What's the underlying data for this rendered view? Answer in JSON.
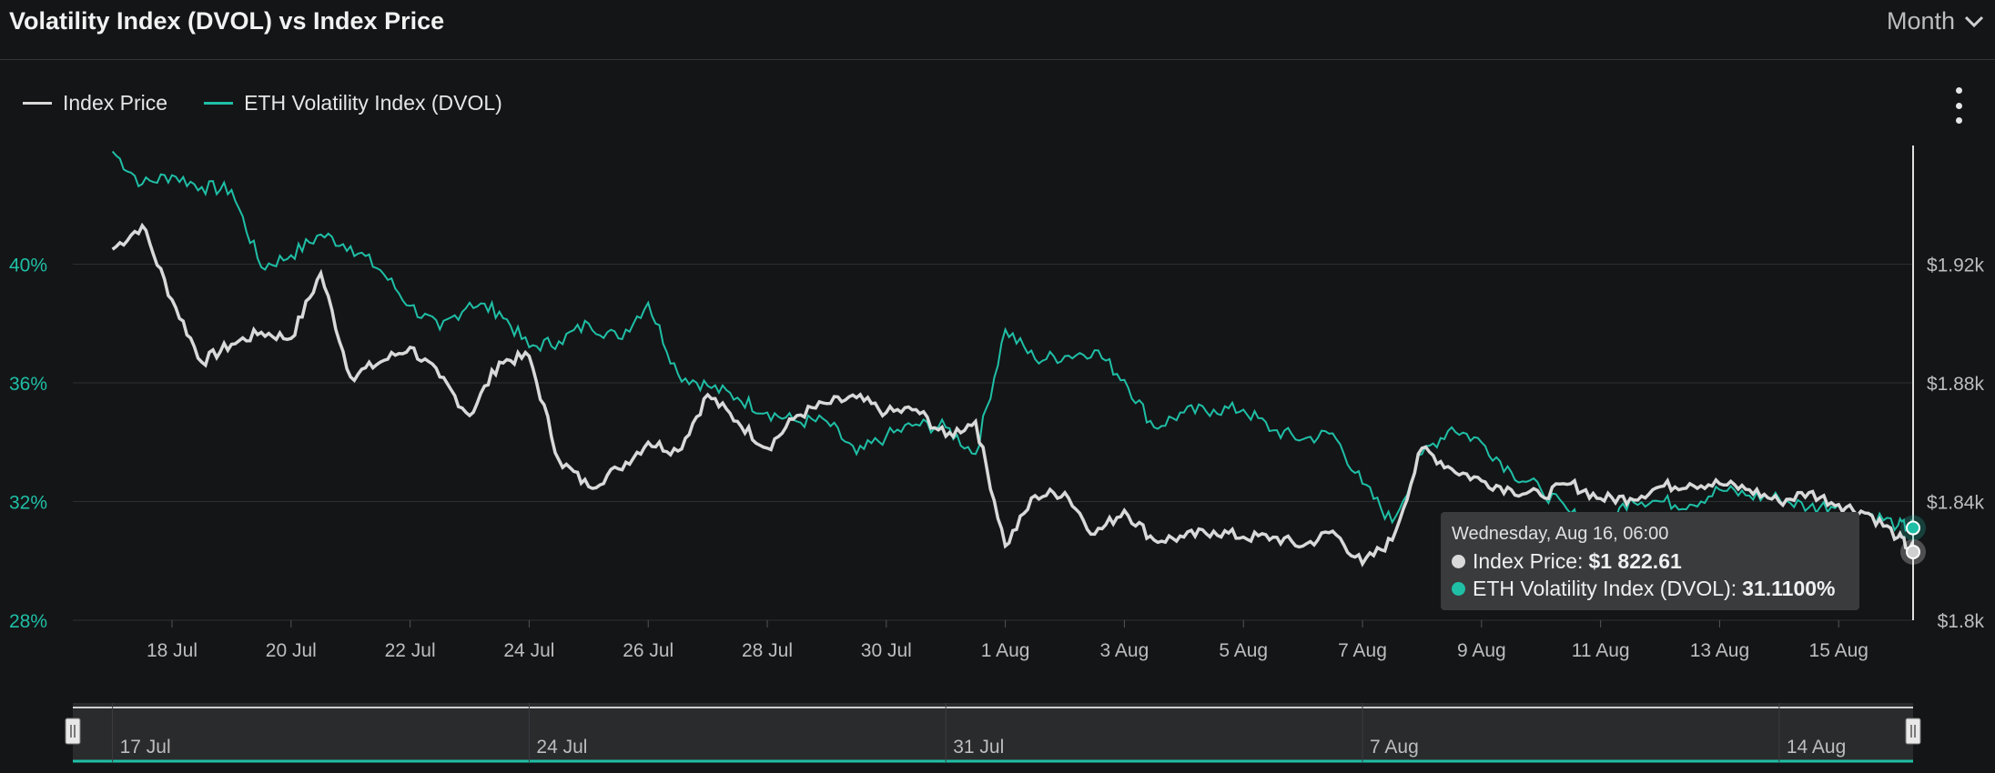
{
  "header": {
    "title": "Volatility Index (DVOL) vs Index Price",
    "period_label": "Month"
  },
  "colors": {
    "index_price": "#d9d9d9",
    "dvol": "#1fbfa6",
    "background": "#141517",
    "grid": "#2c2e31"
  },
  "icons": {
    "period_dropdown": "chevron-down-icon",
    "menu": "kebab-menu-icon",
    "navigator_handle": "grip-handle-icon"
  },
  "tooltip": {
    "date": "Wednesday, Aug 16, 06:00",
    "index_label": "Index Price:",
    "index_value": "$1 822.61",
    "dvol_label": "ETH Volatility Index (DVOL):",
    "dvol_value": "31.1100%"
  },
  "navigator": {
    "labels": [
      "17 Jul",
      "24 Jul",
      "31 Jul",
      "7 Aug",
      "14 Aug"
    ]
  },
  "chart_data": {
    "type": "line",
    "legend_position": "top-left",
    "grid": true,
    "x_tick_labels": [
      "18 Jul",
      "20 Jul",
      "22 Jul",
      "24 Jul",
      "26 Jul",
      "28 Jul",
      "30 Jul",
      "1 Aug",
      "3 Aug",
      "5 Aug",
      "7 Aug",
      "9 Aug",
      "11 Aug",
      "13 Aug",
      "15 Aug"
    ],
    "left_axis": {
      "ticks": [
        "40%",
        "36%",
        "32%",
        "28%"
      ],
      "values": [
        40,
        36,
        32,
        28
      ],
      "range": [
        28,
        44
      ]
    },
    "right_axis": {
      "ticks": [
        "$1.92k",
        "$1.88k",
        "$1.84k",
        "$1.8k"
      ],
      "values": [
        1920,
        1880,
        1840,
        1800
      ],
      "range": [
        1800,
        1960
      ]
    },
    "series": [
      {
        "name": "Index Price",
        "axis": "right",
        "x": [
          "2023-07-17",
          "2023-07-17 12:00",
          "2023-07-18",
          "2023-07-18 12:00",
          "2023-07-19",
          "2023-07-19 12:00",
          "2023-07-20",
          "2023-07-20 12:00",
          "2023-07-21",
          "2023-07-21 12:00",
          "2023-07-22",
          "2023-07-22 12:00",
          "2023-07-23",
          "2023-07-23 12:00",
          "2023-07-24",
          "2023-07-24 12:00",
          "2023-07-25",
          "2023-07-25 12:00",
          "2023-07-26",
          "2023-07-26 12:00",
          "2023-07-27",
          "2023-07-27 12:00",
          "2023-07-28",
          "2023-07-28 12:00",
          "2023-07-29",
          "2023-07-29 12:00",
          "2023-07-30",
          "2023-07-30 12:00",
          "2023-07-31",
          "2023-07-31 12:00",
          "2023-08-01",
          "2023-08-01 12:00",
          "2023-08-02",
          "2023-08-02 12:00",
          "2023-08-03",
          "2023-08-03 12:00",
          "2023-08-04",
          "2023-08-04 12:00",
          "2023-08-05",
          "2023-08-05 12:00",
          "2023-08-06",
          "2023-08-06 12:00",
          "2023-08-07",
          "2023-08-07 12:00",
          "2023-08-08",
          "2023-08-08 12:00",
          "2023-08-09",
          "2023-08-09 12:00",
          "2023-08-10",
          "2023-08-10 12:00",
          "2023-08-11",
          "2023-08-11 12:00",
          "2023-08-12",
          "2023-08-12 12:00",
          "2023-08-13",
          "2023-08-13 12:00",
          "2023-08-14",
          "2023-08-14 12:00",
          "2023-08-15",
          "2023-08-15 12:00",
          "2023-08-16",
          "2023-08-16 06:00"
        ],
        "values": [
          1925,
          1933,
          1908,
          1887,
          1893,
          1897,
          1895,
          1917,
          1882,
          1887,
          1892,
          1882,
          1869,
          1887,
          1889,
          1854,
          1845,
          1851,
          1860,
          1857,
          1876,
          1867,
          1858,
          1869,
          1873,
          1875,
          1870,
          1871,
          1862,
          1867,
          1825,
          1842,
          1843,
          1829,
          1837,
          1827,
          1828,
          1830,
          1828,
          1828,
          1825,
          1830,
          1819,
          1827,
          1858,
          1851,
          1847,
          1844,
          1842,
          1846,
          1841,
          1841,
          1845,
          1846,
          1846,
          1844,
          1840,
          1843,
          1839,
          1836,
          1828,
          1823
        ]
      },
      {
        "name": "ETH Volatility Index (DVOL)",
        "axis": "left",
        "x": [
          "2023-07-17",
          "2023-07-17 12:00",
          "2023-07-18",
          "2023-07-18 12:00",
          "2023-07-19",
          "2023-07-19 12:00",
          "2023-07-20",
          "2023-07-20 12:00",
          "2023-07-21",
          "2023-07-21 12:00",
          "2023-07-22",
          "2023-07-22 12:00",
          "2023-07-23",
          "2023-07-23 12:00",
          "2023-07-24",
          "2023-07-24 12:00",
          "2023-07-25",
          "2023-07-25 12:00",
          "2023-07-26",
          "2023-07-26 12:00",
          "2023-07-27",
          "2023-07-27 12:00",
          "2023-07-28",
          "2023-07-28 12:00",
          "2023-07-29",
          "2023-07-29 12:00",
          "2023-07-30",
          "2023-07-30 12:00",
          "2023-07-31",
          "2023-07-31 12:00",
          "2023-08-01",
          "2023-08-01 12:00",
          "2023-08-02",
          "2023-08-02 12:00",
          "2023-08-03",
          "2023-08-03 12:00",
          "2023-08-04",
          "2023-08-04 12:00",
          "2023-08-05",
          "2023-08-05 12:00",
          "2023-08-06",
          "2023-08-06 12:00",
          "2023-08-07",
          "2023-08-07 12:00",
          "2023-08-08",
          "2023-08-08 12:00",
          "2023-08-09",
          "2023-08-09 12:00",
          "2023-08-10",
          "2023-08-10 12:00",
          "2023-08-11",
          "2023-08-11 12:00",
          "2023-08-12",
          "2023-08-12 12:00",
          "2023-08-13",
          "2023-08-13 12:00",
          "2023-08-14",
          "2023-08-14 12:00",
          "2023-08-15",
          "2023-08-15 12:00",
          "2023-08-16",
          "2023-08-16 06:00"
        ],
        "values": [
          43.8,
          42.7,
          43.0,
          42.6,
          42.5,
          39.9,
          40.3,
          41.0,
          40.6,
          39.8,
          38.6,
          37.8,
          38.7,
          38.4,
          37.2,
          37.4,
          38.0,
          37.5,
          38.7,
          36.3,
          35.9,
          35.5,
          35.0,
          34.7,
          34.7,
          33.6,
          34.2,
          34.6,
          34.5,
          33.6,
          37.8,
          36.8,
          36.9,
          37.1,
          36.1,
          34.5,
          35.0,
          35.1,
          35.1,
          34.4,
          34.1,
          34.3,
          32.6,
          31.3,
          33.6,
          34.5,
          34.0,
          33.0,
          32.4,
          31.6,
          31.0,
          32.1,
          32.0,
          31.9,
          32.4,
          32.2,
          32.1,
          31.8,
          31.9,
          31.6,
          31.2,
          31.11
        ]
      }
    ]
  }
}
